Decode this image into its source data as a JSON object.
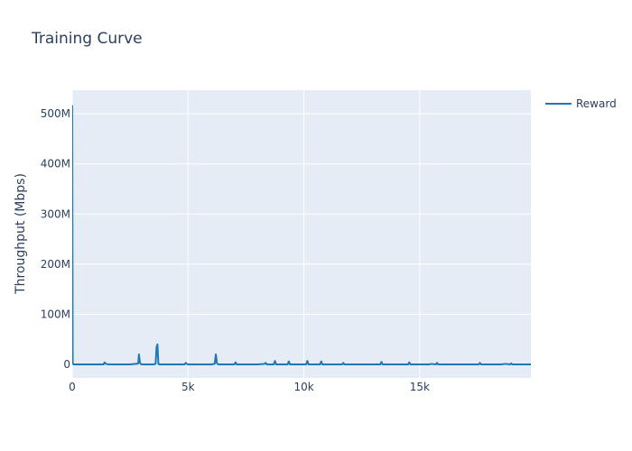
{
  "chart_data": {
    "type": "line",
    "title": "Training Curve",
    "xlabel": "",
    "ylabel": "Throughput (Mbps)",
    "xlim": [
      0,
      19800
    ],
    "ylim": [
      -27000000,
      547000000
    ],
    "x_ticks": [
      {
        "value": 0,
        "label": "0"
      },
      {
        "value": 5000,
        "label": "5k"
      },
      {
        "value": 10000,
        "label": "10k"
      },
      {
        "value": 15000,
        "label": "15k"
      }
    ],
    "y_ticks": [
      {
        "value": 0,
        "label": "0"
      },
      {
        "value": 100000000,
        "label": "100M"
      },
      {
        "value": 200000000,
        "label": "200M"
      },
      {
        "value": 300000000,
        "label": "300M"
      },
      {
        "value": 400000000,
        "label": "400M"
      },
      {
        "value": 500000000,
        "label": "500M"
      }
    ],
    "grid": true,
    "legend_position": "top-right",
    "colors": {
      "plot_bg": "#e5ecf6",
      "grid": "#ffffff",
      "text": "#2a3f5f",
      "series": "#1f77b4"
    },
    "series": [
      {
        "name": "Reward",
        "color": "#1f77b4",
        "x": [
          0,
          20,
          60,
          100,
          1350,
          1400,
          1450,
          1600,
          2000,
          2500,
          2850,
          2880,
          2920,
          2960,
          3000,
          3500,
          3600,
          3640,
          3680,
          3720,
          3760,
          4000,
          4500,
          4850,
          4900,
          4950,
          5000,
          5500,
          6000,
          6150,
          6200,
          6250,
          6300,
          6800,
          7000,
          7050,
          7100,
          7500,
          8000,
          8300,
          8350,
          8400,
          8600,
          8700,
          8750,
          8800,
          9200,
          9300,
          9350,
          9400,
          9800,
          10100,
          10150,
          10200,
          10500,
          10700,
          10750,
          10800,
          11200,
          11650,
          11700,
          11750,
          12000,
          12500,
          13000,
          13300,
          13350,
          13400,
          13800,
          14000,
          14500,
          14550,
          14600,
          15000,
          15400,
          15500,
          15700,
          15750,
          15800,
          16200,
          16500,
          17000,
          17550,
          17600,
          17650,
          18000,
          18500,
          18700,
          18900,
          18950,
          19000,
          19400,
          19800
        ],
        "values": [
          517000000,
          2000000,
          0,
          0,
          0,
          4000000,
          1000000,
          0,
          0,
          0,
          1500000,
          20000000,
          4000000,
          1000000,
          0,
          0,
          1000000,
          34000000,
          40000000,
          1000000,
          0,
          0,
          0,
          0,
          3000000,
          1000000,
          0,
          0,
          0,
          1000000,
          20000000,
          2000000,
          0,
          0,
          0,
          4000000,
          0,
          0,
          0,
          1000000,
          3000000,
          0,
          0,
          0,
          7000000,
          0,
          0,
          0,
          6000000,
          0,
          0,
          0,
          7000000,
          0,
          0,
          0,
          6000000,
          0,
          0,
          0,
          3000000,
          0,
          0,
          0,
          0,
          0,
          5000000,
          0,
          0,
          0,
          0,
          4000000,
          0,
          0,
          0,
          1000000,
          0,
          3000000,
          0,
          0,
          0,
          0,
          0,
          3000000,
          0,
          0,
          0,
          1000000,
          0,
          2000000,
          0,
          0,
          0
        ]
      }
    ]
  }
}
